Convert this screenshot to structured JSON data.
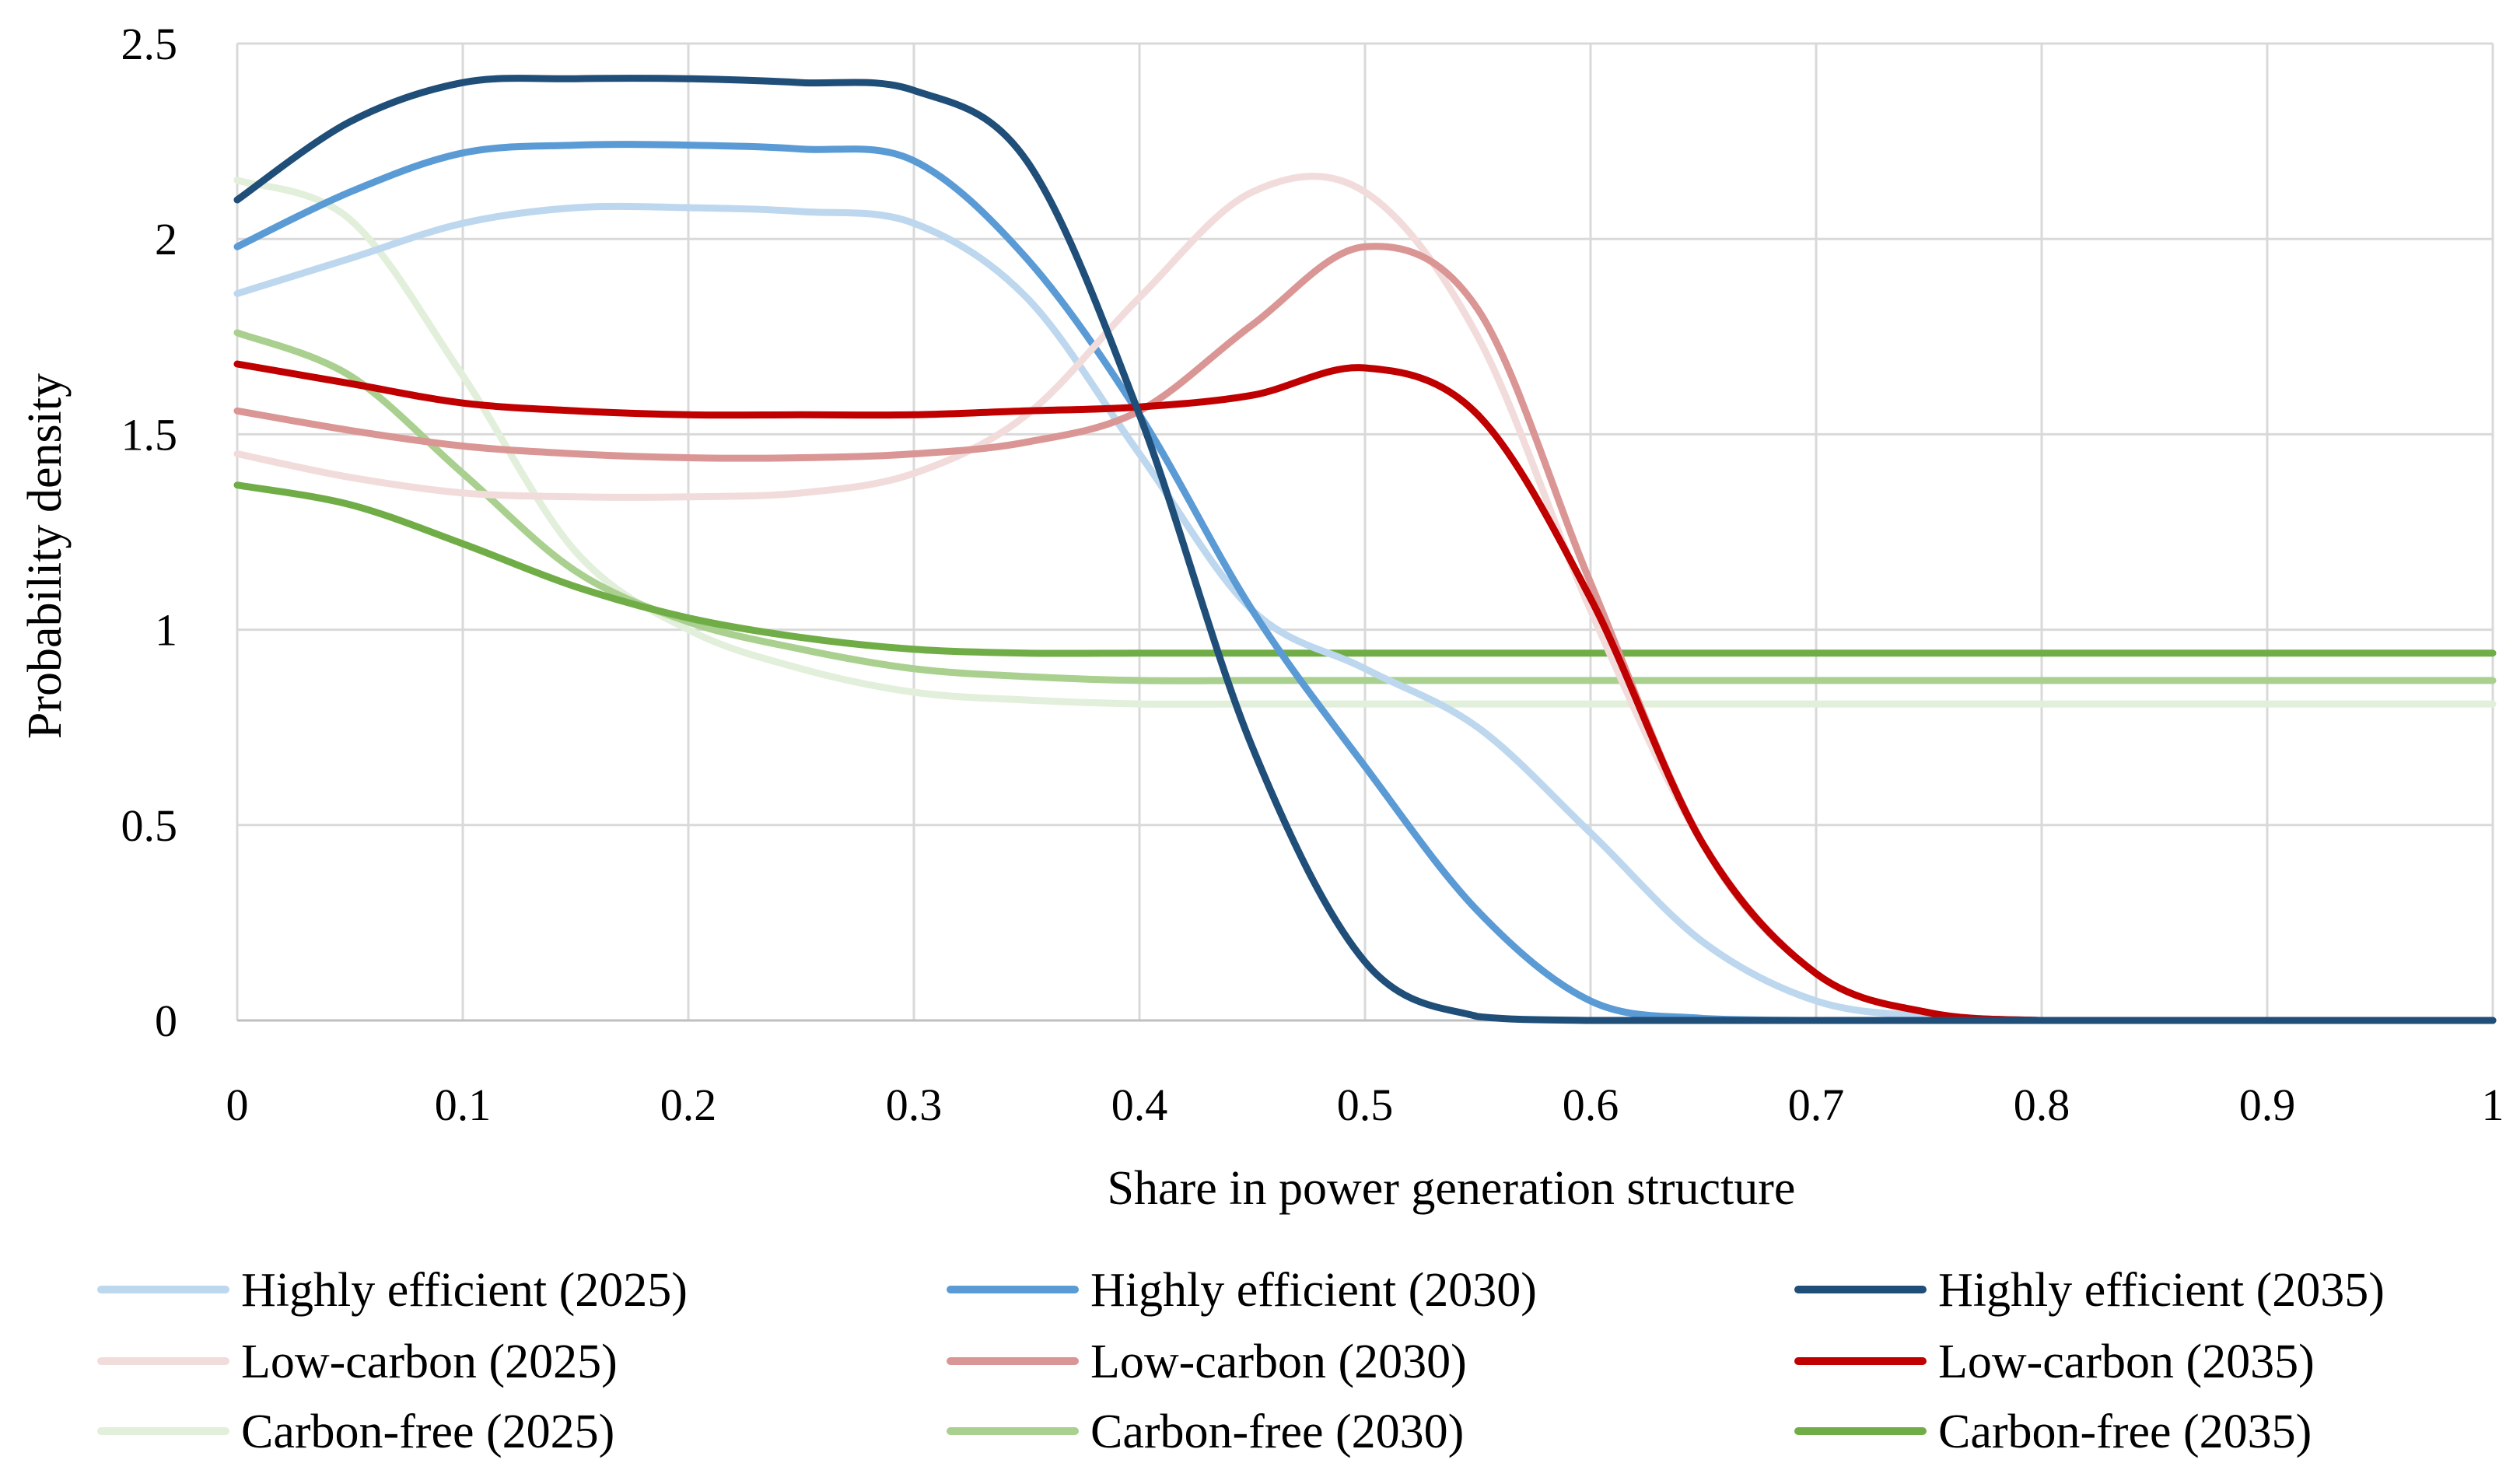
{
  "chart_data": {
    "type": "line",
    "title": "",
    "xlabel": "Share in power generation structure",
    "ylabel": "Probability density",
    "xlim": [
      0,
      1
    ],
    "ylim": [
      0,
      2.5
    ],
    "x_ticks": [
      0,
      0.1,
      0.2,
      0.3,
      0.4,
      0.5,
      0.6,
      0.7,
      0.8,
      0.9,
      1
    ],
    "x_tick_labels": [
      "0",
      "0.1",
      "0.2",
      "0.3",
      "0.4",
      "0.5",
      "0.6",
      "0.7",
      "0.8",
      "0.9",
      "1"
    ],
    "y_ticks": [
      0,
      0.5,
      1,
      1.5,
      2,
      2.5
    ],
    "y_tick_labels": [
      "0",
      "0.5",
      "1",
      "1.5",
      "2",
      "2.5"
    ],
    "grid": true,
    "legend_position": "bottom",
    "x": [
      0,
      0.05,
      0.1,
      0.15,
      0.2,
      0.25,
      0.3,
      0.35,
      0.4,
      0.45,
      0.5,
      0.55,
      0.6,
      0.65,
      0.7,
      0.75,
      0.8,
      0.85,
      0.9,
      0.95,
      1
    ],
    "series": [
      {
        "name": "Highly efficient (2025)",
        "color": "#bdd7ee",
        "values": [
          1.86,
          1.95,
          2.04,
          2.08,
          2.08,
          2.07,
          2.04,
          1.85,
          1.45,
          1.05,
          0.9,
          0.75,
          0.48,
          0.2,
          0.05,
          0.01,
          0.0,
          0.0,
          0.0,
          0.0,
          0.0
        ]
      },
      {
        "name": "Highly efficient (2030)",
        "color": "#5b9bd5",
        "values": [
          1.98,
          2.12,
          2.22,
          2.24,
          2.24,
          2.23,
          2.2,
          1.95,
          1.55,
          1.05,
          0.65,
          0.28,
          0.05,
          0.005,
          0.0,
          0.0,
          0.0,
          0.0,
          0.0,
          0.0,
          0.0
        ]
      },
      {
        "name": "Highly efficient (2035)",
        "color": "#1f4e79",
        "values": [
          2.1,
          2.3,
          2.4,
          2.41,
          2.41,
          2.4,
          2.38,
          2.2,
          1.55,
          0.7,
          0.15,
          0.01,
          0.0,
          0.0,
          0.0,
          0.0,
          0.0,
          0.0,
          0.0,
          0.0,
          0.0
        ]
      },
      {
        "name": "Low-carbon (2025)",
        "color": "#f2dcdb",
        "values": [
          1.45,
          1.39,
          1.35,
          1.34,
          1.34,
          1.35,
          1.4,
          1.55,
          1.85,
          2.12,
          2.12,
          1.75,
          1.05,
          0.45,
          0.12,
          0.02,
          0.0,
          0.0,
          0.0,
          0.0,
          0.0
        ]
      },
      {
        "name": "Low-carbon (2030)",
        "color": "#da9694",
        "values": [
          1.56,
          1.51,
          1.47,
          1.45,
          1.44,
          1.44,
          1.45,
          1.48,
          1.56,
          1.78,
          1.98,
          1.82,
          1.12,
          0.45,
          0.12,
          0.02,
          0.0,
          0.0,
          0.0,
          0.0,
          0.0
        ]
      },
      {
        "name": "Low-carbon (2035)",
        "color": "#c00000",
        "values": [
          1.68,
          1.63,
          1.58,
          1.56,
          1.55,
          1.55,
          1.55,
          1.56,
          1.57,
          1.6,
          1.67,
          1.55,
          1.08,
          0.45,
          0.12,
          0.02,
          0.0,
          0.0,
          0.0,
          0.0,
          0.0
        ]
      },
      {
        "name": "Carbon-free (2025)",
        "color": "#e2efda",
        "values": [
          2.15,
          2.05,
          1.65,
          1.2,
          1.0,
          0.9,
          0.84,
          0.82,
          0.81,
          0.81,
          0.81,
          0.81,
          0.81,
          0.81,
          0.81,
          0.81,
          0.81,
          0.81,
          0.81,
          0.81,
          0.81
        ]
      },
      {
        "name": "Carbon-free (2030)",
        "color": "#a9d08e",
        "values": [
          1.76,
          1.65,
          1.4,
          1.15,
          1.02,
          0.95,
          0.9,
          0.88,
          0.87,
          0.87,
          0.87,
          0.87,
          0.87,
          0.87,
          0.87,
          0.87,
          0.87,
          0.87,
          0.87,
          0.87,
          0.87
        ]
      },
      {
        "name": "Carbon-free (2035)",
        "color": "#70ad47",
        "values": [
          1.37,
          1.32,
          1.22,
          1.11,
          1.03,
          0.98,
          0.95,
          0.94,
          0.94,
          0.94,
          0.94,
          0.94,
          0.94,
          0.94,
          0.94,
          0.94,
          0.94,
          0.94,
          0.94,
          0.94,
          0.94
        ]
      }
    ]
  }
}
